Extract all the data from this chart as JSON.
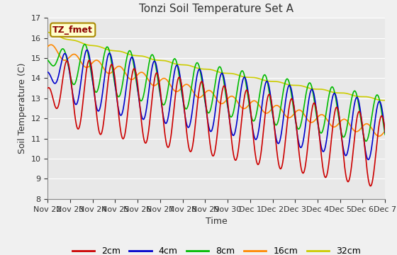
{
  "title": "Tonzi Soil Temperature Set A",
  "xlabel": "Time",
  "ylabel": "Soil Temperature (C)",
  "ylim": [
    8.0,
    17.0
  ],
  "yticks": [
    8.0,
    9.0,
    10.0,
    11.0,
    12.0,
    13.0,
    14.0,
    15.0,
    16.0,
    17.0
  ],
  "xtick_labels": [
    "Nov 22",
    "Nov 23",
    "Nov 24",
    "Nov 25",
    "Nov 26",
    "Nov 27",
    "Nov 28",
    "Nov 29",
    "Nov 30",
    "Dec 1",
    "Dec 2",
    "Dec 3",
    "Dec 4",
    "Dec 5",
    "Dec 6",
    "Dec 7"
  ],
  "series_colors": [
    "#cc0000",
    "#0000cc",
    "#00bb00",
    "#ff8800",
    "#cccc00"
  ],
  "series_labels": [
    "2cm",
    "4cm",
    "8cm",
    "16cm",
    "32cm"
  ],
  "annotation_text": "TZ_fmet",
  "annotation_color": "#8b0000",
  "annotation_bg": "#ffffcc",
  "fig_bg": "#f0f0f0",
  "plot_bg": "#e8e8e8",
  "grid_color": "#ffffff",
  "linewidth": 1.2,
  "n_points": 720
}
